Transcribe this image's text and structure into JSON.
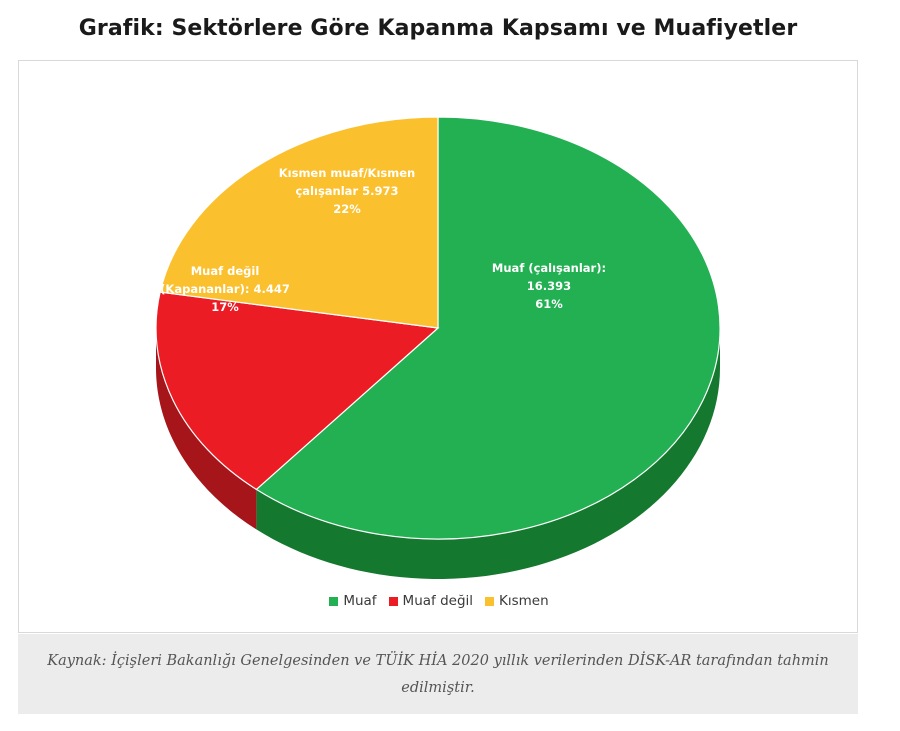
{
  "page": {
    "title": "Grafik: Sektörlere Göre Kapanma Kapsamı ve Muafiyetler",
    "caption": "Kaynak: İçişleri Bakanlığı Genelgesinden ve TÜİK HİA 2020 yıllık verilerinden DİSK-AR tarafından tahmin edilmiştir."
  },
  "chart_data": {
    "type": "pie",
    "title": "",
    "legend_position": "bottom",
    "start_angle_deg": 0,
    "direction": "clockwise",
    "slices": [
      {
        "name": "Muaf",
        "value": 16393,
        "percent": 61,
        "color": "#22b052",
        "side_color": "#15782f",
        "label_lines": [
          "Muaf (çalışanlar):",
          "16.393",
          "61%"
        ]
      },
      {
        "name": "Muaf değil",
        "value": 4447,
        "percent": 17,
        "color": "#ec1c24",
        "side_color": "#a5151a",
        "label_lines": [
          "Muaf değil",
          "(Kapananlar):  4.447",
          "17%"
        ]
      },
      {
        "name": "Kısmen",
        "value": 5973,
        "percent": 22,
        "color": "#fbc02d",
        "side_color": "#b98a10",
        "label_lines": [
          "Kısmen muaf/Kısmen",
          "çalışanlar  5.973",
          "22%"
        ]
      }
    ]
  }
}
